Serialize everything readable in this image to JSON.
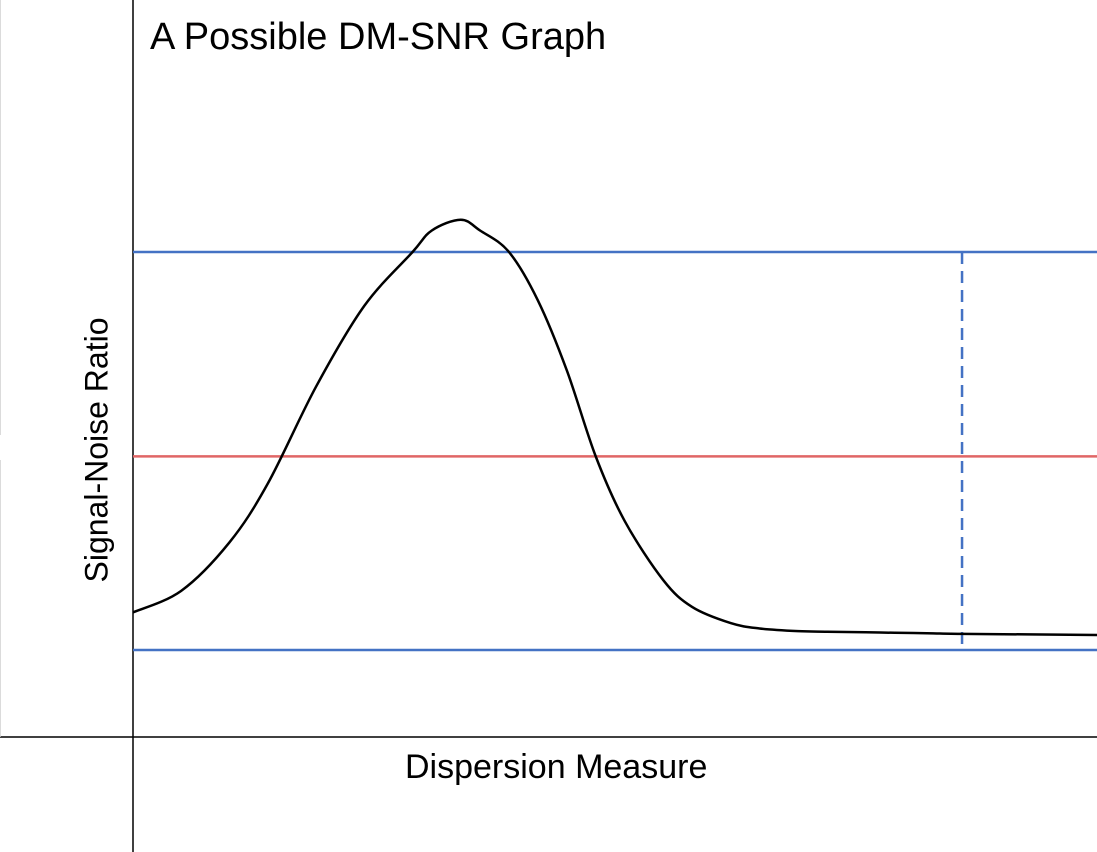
{
  "chart_data": {
    "type": "line",
    "title": "A Possible DM-SNR Graph",
    "xlabel": "Dispersion Measure",
    "ylabel": "Signal-Noise Ratio",
    "xlim": [
      0,
      100
    ],
    "ylim": [
      0,
      100
    ],
    "grid": false,
    "series": [
      {
        "x": [
          0,
          5,
          10,
          14,
          19,
          24,
          29,
          31,
          34,
          36,
          39,
          42,
          45,
          48,
          51,
          55,
          58,
          62,
          65,
          69,
          72,
          76,
          79,
          83,
          86,
          100
        ],
        "values": [
          23,
          27,
          36,
          47,
          65,
          80,
          90,
          94,
          96,
          94,
          90,
          81,
          68,
          52,
          40,
          29,
          24,
          21,
          20,
          19.5,
          19.4,
          19.3,
          19.2,
          19.1,
          19,
          18.8
        ],
        "color": "#000000"
      }
    ],
    "reference_lines": [
      {
        "orientation": "horizontal",
        "value": 90,
        "color": "#4472C4",
        "style": "solid"
      },
      {
        "orientation": "horizontal",
        "value": 52,
        "color": "#E06666",
        "style": "solid"
      },
      {
        "orientation": "horizontal",
        "value": 16,
        "color": "#4472C4",
        "style": "solid"
      },
      {
        "orientation": "vertical",
        "value": 86,
        "range": [
          16,
          90
        ],
        "color": "#4472C4",
        "style": "dashed"
      }
    ]
  }
}
